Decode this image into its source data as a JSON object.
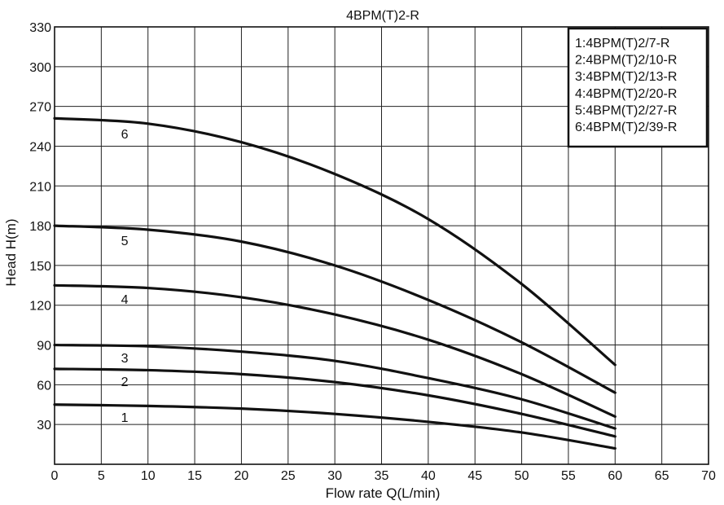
{
  "chart_data": {
    "type": "line",
    "title": "4BPM(T)2-R",
    "xlabel": "Flow rate Q(L/min)",
    "ylabel": "Head H(m)",
    "xlim": [
      0,
      70
    ],
    "ylim": [
      0,
      330
    ],
    "xticks": [
      0,
      5,
      10,
      15,
      20,
      25,
      30,
      35,
      40,
      45,
      50,
      55,
      60,
      65,
      70
    ],
    "yticks": [
      30,
      60,
      90,
      120,
      150,
      180,
      210,
      240,
      270,
      300,
      330
    ],
    "grid": true,
    "legend_position": "top-right",
    "legend": [
      "1:4BPM(T)2/7-R",
      "2:4BPM(T)2/10-R",
      "3:4BPM(T)2/13-R",
      "4:4BPM(T)2/20-R",
      "5:4BPM(T)2/27-R",
      "6:4BPM(T)2/39-R"
    ],
    "series": [
      {
        "label": "1",
        "label_x": 7.5,
        "x": [
          0,
          10,
          20,
          30,
          40,
          50,
          60
        ],
        "y": [
          45,
          44,
          42,
          38,
          32,
          24,
          12
        ]
      },
      {
        "label": "2",
        "label_x": 7.5,
        "x": [
          0,
          10,
          20,
          30,
          40,
          50,
          60
        ],
        "y": [
          72,
          71,
          68,
          62,
          52,
          38,
          21
        ]
      },
      {
        "label": "3",
        "label_x": 7.5,
        "x": [
          0,
          10,
          20,
          30,
          40,
          50,
          60
        ],
        "y": [
          90,
          89,
          85,
          78,
          65,
          49,
          27
        ]
      },
      {
        "label": "4",
        "label_x": 7.5,
        "x": [
          0,
          10,
          20,
          30,
          40,
          50,
          60
        ],
        "y": [
          135,
          133,
          126,
          113,
          94,
          68,
          36
        ]
      },
      {
        "label": "5",
        "label_x": 7.5,
        "x": [
          0,
          10,
          20,
          30,
          40,
          50,
          60
        ],
        "y": [
          180,
          177,
          168,
          150,
          124,
          92,
          54
        ]
      },
      {
        "label": "6",
        "label_x": 7.5,
        "x": [
          0,
          10,
          20,
          30,
          40,
          50,
          60
        ],
        "y": [
          261,
          257,
          243,
          219,
          185,
          136,
          75
        ]
      }
    ]
  }
}
